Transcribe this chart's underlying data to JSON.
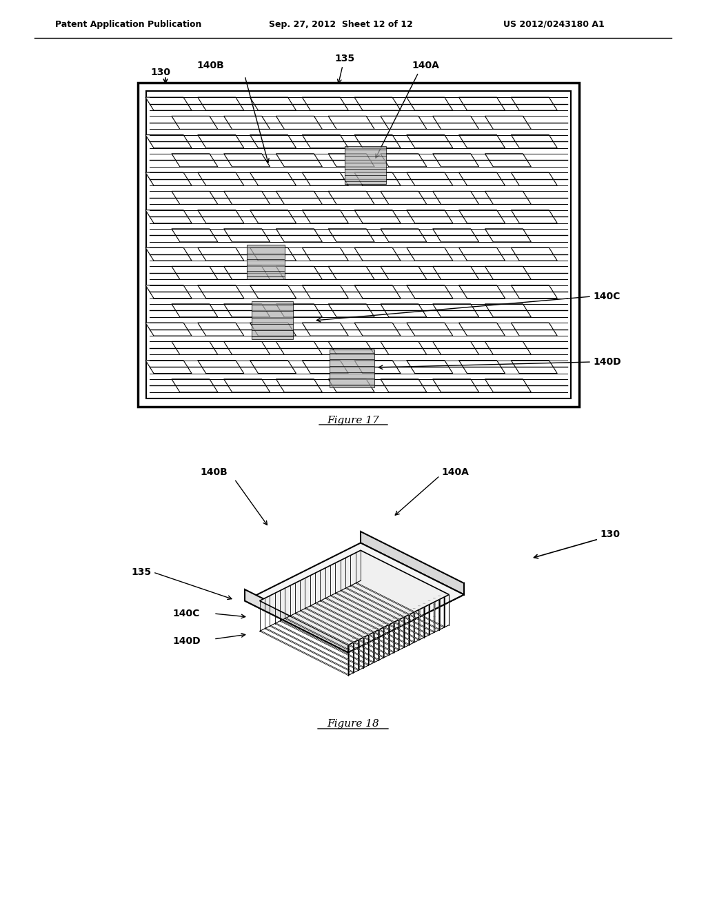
{
  "bg_color": "#ffffff",
  "line_color": "#000000",
  "gray_color": "#888888",
  "light_gray": "#cccccc",
  "header_text": "Patent Application Publication",
  "header_date": "Sep. 27, 2012  Sheet 12 of 12",
  "header_patent": "US 2012/0243180 A1",
  "fig17_title": "Figure 17",
  "fig18_title": "Figure 18",
  "labels": {
    "130_top": "130",
    "140B_top": "140B",
    "135_top": "135",
    "140A_top": "140A",
    "140C_top": "140C",
    "140D_top": "140D",
    "130_bot": "130",
    "140B_bot": "140B",
    "140A_bot": "140A",
    "135_bot": "135",
    "140C_bot": "140C",
    "140D_bot": "140D"
  }
}
